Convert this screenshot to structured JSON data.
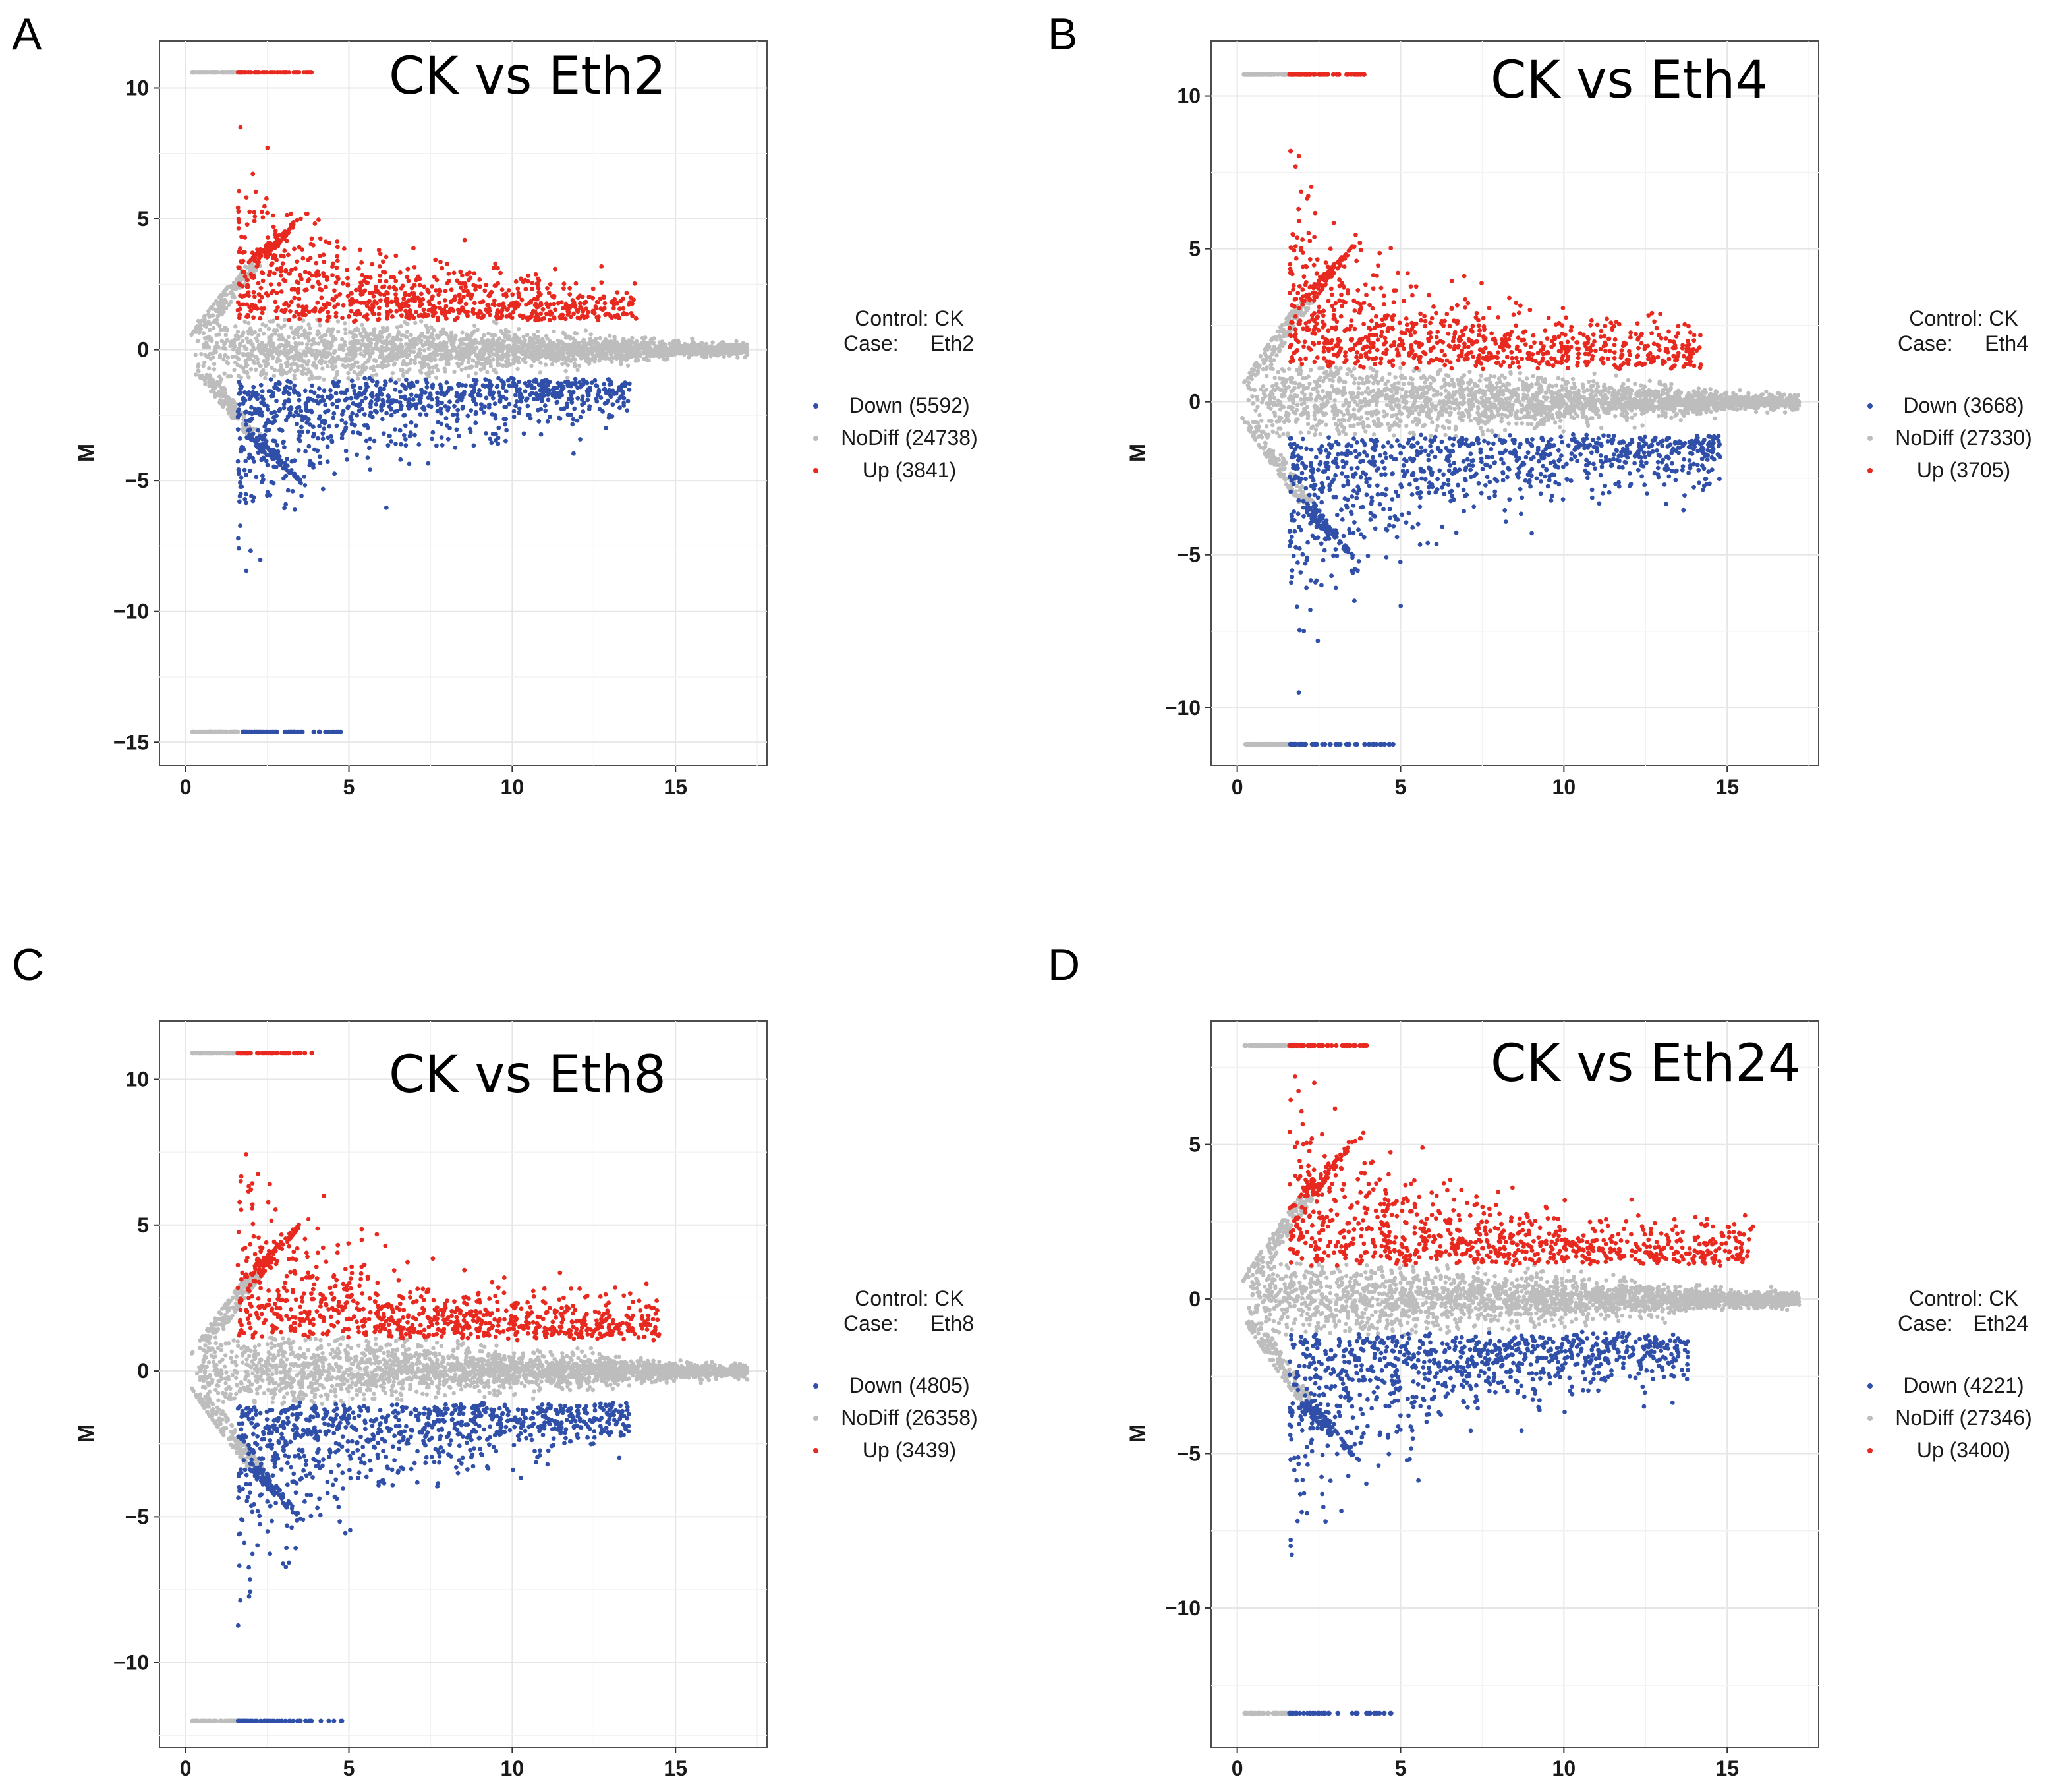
{
  "colors": {
    "up": "#e8291f",
    "down": "#2f4fa8",
    "nodiff": "#bdbdbd"
  },
  "chart_data": [
    {
      "panel_label": "A",
      "type": "scatter",
      "title": "CK vs Eth2",
      "xlabel": "",
      "ylabel": "M",
      "xlim": [
        -0.8,
        17.8
      ],
      "ylim": [
        -15.9,
        11.8
      ],
      "xticks": [
        0,
        5,
        10,
        15
      ],
      "yticks": [
        -15,
        -10,
        -5,
        0,
        5,
        10
      ],
      "ytick_labels": [
        "−15",
        "−10",
        "−5",
        "0",
        "5",
        "10"
      ],
      "legend": {
        "control": "Control: CK",
        "case_prefix": "Case:",
        "case_name": "Eth2",
        "entries": [
          {
            "series": "down",
            "label": "Down (5592)"
          },
          {
            "series": "nodiff",
            "label": "NoDiff (24738)"
          },
          {
            "series": "up",
            "label": "Up (3841)"
          }
        ]
      },
      "sim": {
        "top_y": 10.6,
        "bot_y": -14.6,
        "up_peak": 7.5,
        "dn_peak": -10.5,
        "xmax_grey": 17.2,
        "up_xmax": 13.8,
        "dn_xmax": 13.6,
        "seed": 11
      }
    },
    {
      "panel_label": "B",
      "type": "scatter",
      "title": "CK vs Eth4",
      "xlabel": "",
      "ylabel": "M",
      "xlim": [
        -0.8,
        17.8
      ],
      "ylim": [
        -11.9,
        11.8
      ],
      "xticks": [
        0,
        5,
        10,
        15
      ],
      "yticks": [
        -10,
        -5,
        0,
        5,
        10
      ],
      "ytick_labels": [
        "−10",
        "−5",
        "0",
        "5",
        "10"
      ],
      "legend": {
        "control": "Control: CK",
        "case_prefix": "Case:",
        "case_name": "Eth4",
        "entries": [
          {
            "series": "down",
            "label": "Down (3668)"
          },
          {
            "series": "nodiff",
            "label": "NoDiff (27330)"
          },
          {
            "series": "up",
            "label": "Up (3705)"
          }
        ]
      },
      "sim": {
        "top_y": 10.7,
        "bot_y": -11.2,
        "up_peak": 7.2,
        "dn_peak": -8.5,
        "xmax_grey": 17.2,
        "up_xmax": 14.2,
        "dn_xmax": 14.8,
        "seed": 23
      }
    },
    {
      "panel_label": "C",
      "type": "scatter",
      "title": "CK vs Eth8",
      "xlabel": "",
      "ylabel": "M",
      "xlim": [
        -0.8,
        17.8
      ],
      "ylim": [
        -12.9,
        12.0
      ],
      "xticks": [
        0,
        5,
        10,
        15
      ],
      "yticks": [
        -10,
        -5,
        0,
        5,
        10
      ],
      "ytick_labels": [
        "−10",
        "−5",
        "0",
        "5",
        "10"
      ],
      "legend": {
        "control": "Control: CK",
        "case_prefix": "Case:",
        "case_name": "Eth8",
        "entries": [
          {
            "series": "down",
            "label": "Down (4805)"
          },
          {
            "series": "nodiff",
            "label": "NoDiff (26358)"
          },
          {
            "series": "up",
            "label": "Up (3439)"
          }
        ]
      },
      "sim": {
        "top_y": 10.9,
        "bot_y": -12.0,
        "up_peak": 7.2,
        "dn_peak": -9.5,
        "xmax_grey": 17.2,
        "up_xmax": 14.5,
        "dn_xmax": 13.6,
        "seed": 37
      }
    },
    {
      "panel_label": "D",
      "type": "scatter",
      "title": "CK vs Eth24",
      "xlabel": "",
      "ylabel": "M",
      "xlim": [
        -0.8,
        17.8
      ],
      "ylim": [
        -14.5,
        9.0
      ],
      "xticks": [
        0,
        5,
        10,
        15
      ],
      "yticks": [
        -10,
        -5,
        0,
        5
      ],
      "ytick_labels": [
        "−10",
        "−5",
        "0",
        "5"
      ],
      "legend": {
        "control": "Control: CK",
        "case_prefix": "Case:",
        "case_name": "Eth24",
        "entries": [
          {
            "series": "down",
            "label": "Down (4221)"
          },
          {
            "series": "nodiff",
            "label": "NoDiff (27346)"
          },
          {
            "series": "up",
            "label": "Up (3400)"
          }
        ]
      },
      "sim": {
        "top_y": 8.2,
        "bot_y": -13.4,
        "up_peak": 6.2,
        "dn_peak": -9.0,
        "xmax_grey": 17.2,
        "up_xmax": 15.8,
        "dn_xmax": 13.8,
        "seed": 53
      }
    }
  ]
}
